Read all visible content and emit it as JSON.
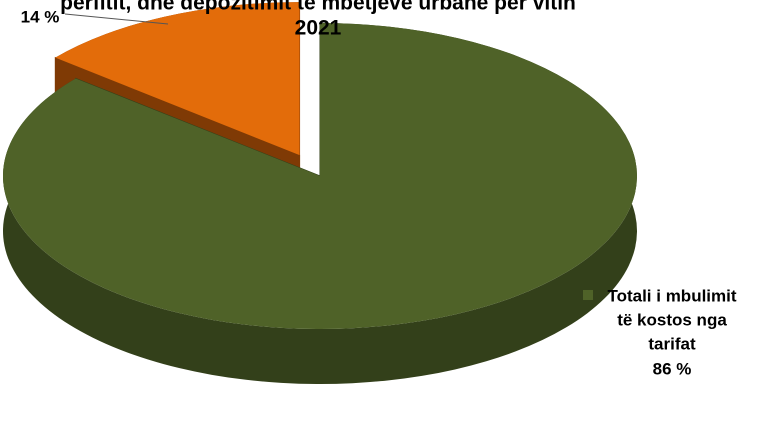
{
  "chart_data": {
    "type": "pie",
    "title_lines": [
      "përfitit, dhe depozitimit të mbetjeve urbane për vitin",
      "2021"
    ],
    "slices": [
      {
        "name": "",
        "value": 14,
        "label_lines": [
          "14 %"
        ],
        "color": "#e36c0a",
        "side_color": "#7f3a05",
        "exploded": true
      },
      {
        "name": "Totali i mbulimit të kostos nga tarifat",
        "value": 86,
        "label_lines": [
          "Totali i mbulimit",
          "të kostos nga",
          "tarifat",
          "86 %"
        ],
        "color": "#4f6228",
        "side_color": "#33401a",
        "legend_marker": true,
        "exploded": false
      }
    ],
    "legend": "none",
    "style": "3d-exploded"
  }
}
